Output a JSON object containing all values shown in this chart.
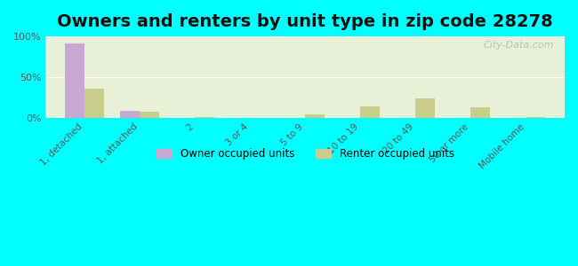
{
  "title": "Owners and renters by unit type in zip code 28278",
  "categories": [
    "1, detached",
    "1, attached",
    "2",
    "3 or 4",
    "5 to 9",
    "10 to 19",
    "20 to 49",
    "50 or more",
    "Mobile home"
  ],
  "owner_values": [
    91,
    8,
    0,
    0,
    0,
    0,
    0,
    0,
    0
  ],
  "renter_values": [
    36,
    7,
    1,
    0,
    4,
    14,
    24,
    13,
    1
  ],
  "owner_color": "#c9a8d4",
  "renter_color": "#c8cd8a",
  "background_plot": "#e8f0d8",
  "background_outer": "#00ffff",
  "ylabel": "",
  "ylim": [
    0,
    100
  ],
  "yticks": [
    0,
    50,
    100
  ],
  "ytick_labels": [
    "0%",
    "50%",
    "100%"
  ],
  "watermark": "City-Data.com",
  "legend_owner": "Owner occupied units",
  "legend_renter": "Renter occupied units",
  "bar_width": 0.35,
  "title_fontsize": 14
}
